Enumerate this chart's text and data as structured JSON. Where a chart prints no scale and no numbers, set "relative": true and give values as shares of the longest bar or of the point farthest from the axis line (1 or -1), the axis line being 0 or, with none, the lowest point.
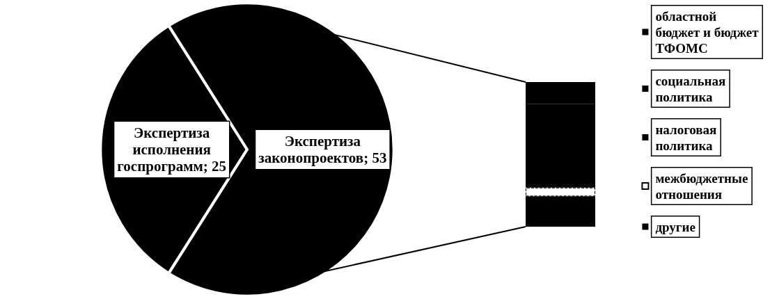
{
  "chart_data": [
    {
      "type": "pie",
      "categories": [
        "Экспертиза\nисполнения\nгоспрограмм",
        "Экспертиза\nзаконопроектов"
      ],
      "values": [
        25,
        53
      ],
      "value_labels": [
        "; 25",
        "; 53"
      ],
      "colors": [
        "#000000",
        "#000000"
      ],
      "data_labels": true
    },
    {
      "type": "bar",
      "stacked": true,
      "relative": true,
      "legend": "right",
      "categories": [
        null
      ],
      "series": [
        {
          "name": "другие",
          "color": "#000000",
          "values": [
            0.21
          ]
        },
        {
          "name": "межбюджетные\nотношения",
          "color": "#ffffff",
          "values": [
            0.06
          ]
        },
        {
          "name": "налоговая\nполитика",
          "color": "#000000",
          "values": [
            0.34
          ]
        },
        {
          "name": "социальная\nполитика",
          "color": "#000000",
          "values": [
            0.24
          ]
        },
        {
          "name": "областной\nбюджет и бюджет\nТФОМС",
          "color": "#000000",
          "values": [
            0.15
          ]
        }
      ]
    }
  ]
}
